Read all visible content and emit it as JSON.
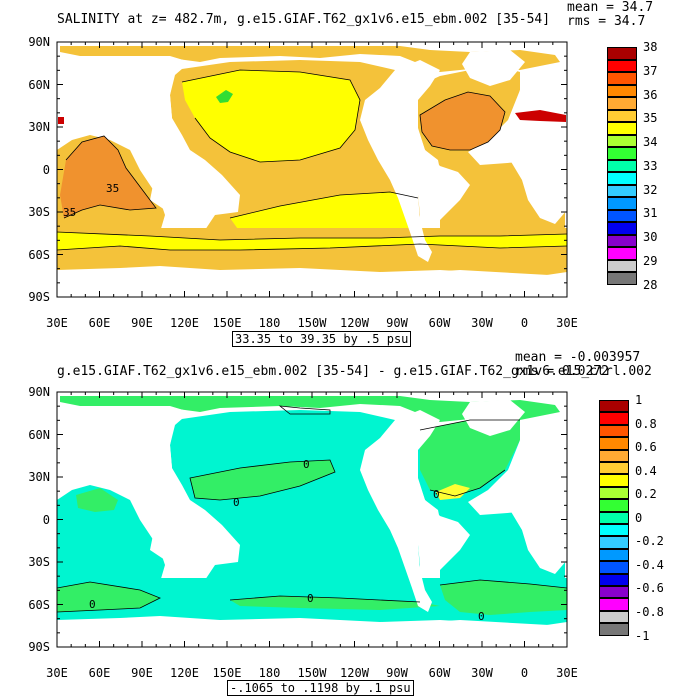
{
  "panel1": {
    "title": "SALINITY at z= 482.7m, g.e15.GIAF.T62_gx1v6.e15_ebm.002 [35-54]",
    "mean": "mean = 34.7",
    "rms": "rms = 34.7",
    "contour_info": "33.35 to 39.35 by .5 psu",
    "contour_label_a": "35",
    "contour_label_b": "35",
    "colorbar": {
      "colors": [
        "#aa0000",
        "#ff0000",
        "#ff5500",
        "#ff8800",
        "#ffaa33",
        "#ffcc33",
        "#ffff00",
        "#aaff33",
        "#33ff33",
        "#00ffaa",
        "#00ffff",
        "#33ccff",
        "#0099ff",
        "#0055ff",
        "#0000ee",
        "#8800cc",
        "#ff00ff",
        "#cccccc",
        "#777777"
      ],
      "labels": [
        "38",
        "37",
        "36",
        "35",
        "34",
        "33",
        "32",
        "31",
        "30",
        "29",
        "28"
      ]
    },
    "palette": {
      "land": "#ffffff",
      "base": "#f4c23a",
      "atlantic": "#f0922e",
      "pacific": "#ffff00",
      "red": "#cc0000",
      "green": "#33dd33"
    }
  },
  "panel2": {
    "title": "g.e15.GIAF.T62_gx1v6.e15_ebm.002 [35-54] - g.e15.GIAF.T62_gx1v6.e15_ctrl.002",
    "mean": "mean = -0.003957",
    "rms": "rms = 0.0272",
    "contour_info": "-.1065 to .1198 by .1 psu",
    "contour_labels": [
      "0",
      "0",
      "0",
      "0",
      "0",
      "0"
    ],
    "colorbar": {
      "colors": [
        "#aa0000",
        "#ff0000",
        "#ff5500",
        "#ff8800",
        "#ffaa33",
        "#ffcc33",
        "#ffff00",
        "#aaff33",
        "#33ff33",
        "#00ffaa",
        "#00ffff",
        "#33ccff",
        "#0099ff",
        "#0055ff",
        "#0000ee",
        "#8800cc",
        "#ff00ff",
        "#cccccc",
        "#777777"
      ],
      "labels": [
        "1",
        "0.8",
        "0.6",
        "0.4",
        "0.2",
        "0",
        "-0.2",
        "-0.4",
        "-0.6",
        "-0.8",
        "-1"
      ]
    },
    "palette": {
      "base": "#00f5d0",
      "green": "#33ee66",
      "yellow": "#ffff33"
    }
  },
  "axes": {
    "lat_labels": [
      "90N",
      "60N",
      "30N",
      "0",
      "30S",
      "60S",
      "90S"
    ],
    "lon_labels": [
      "30E",
      "60E",
      "90E",
      "120E",
      "150E",
      "180",
      "150W",
      "120W",
      "90W",
      "60W",
      "30W",
      "0",
      "30E"
    ]
  }
}
